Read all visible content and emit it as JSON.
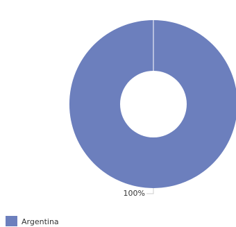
{
  "chart_data": {
    "type": "donut",
    "categories": [
      "Argentina"
    ],
    "values": [
      100
    ],
    "value_labels": [
      "100%"
    ],
    "colors": [
      "#6c7fbd"
    ],
    "legend": "bottom-left"
  }
}
